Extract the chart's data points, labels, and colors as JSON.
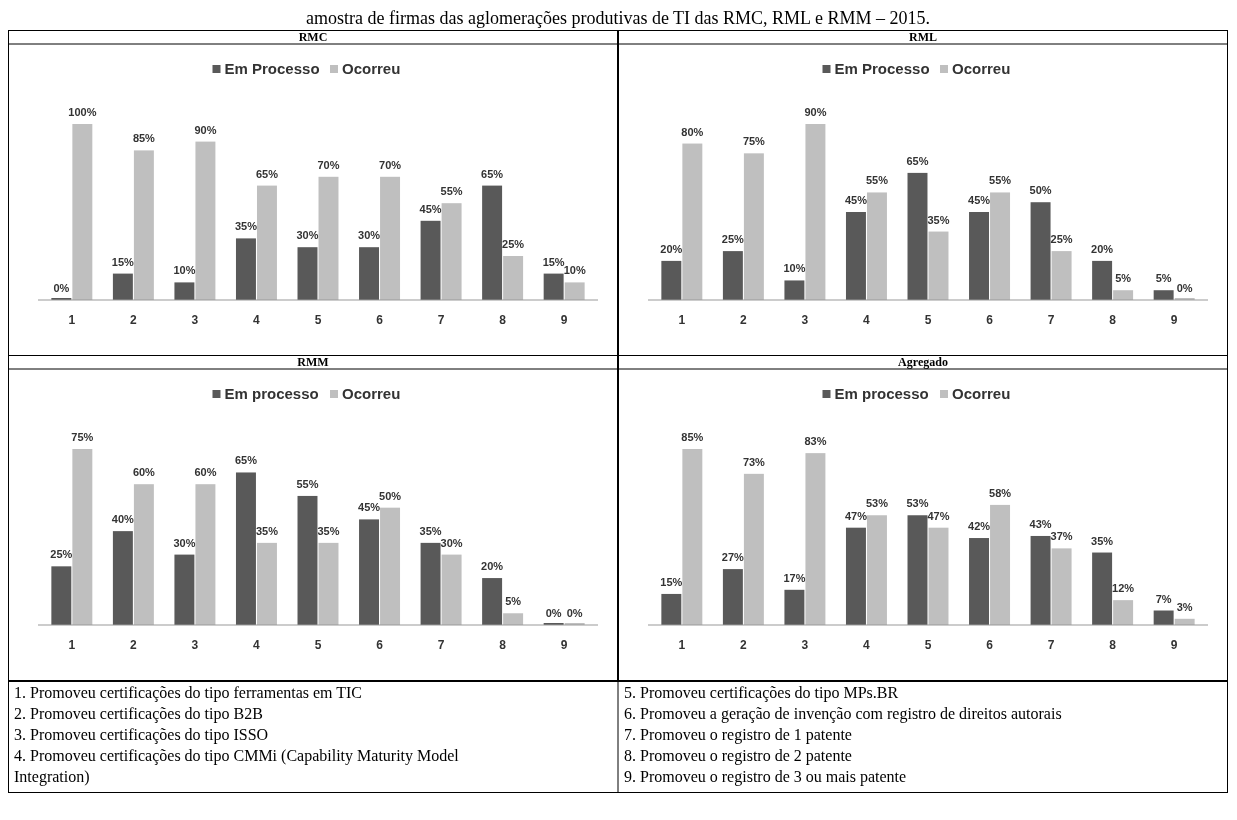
{
  "chart_data": [
    {
      "type": "bar",
      "title": "RMC",
      "categories": [
        "1",
        "2",
        "3",
        "4",
        "5",
        "6",
        "7",
        "8",
        "9"
      ],
      "legend": "top",
      "series": [
        {
          "name": "Em Processo",
          "color": "#595959",
          "values": [
            0,
            15,
            10,
            35,
            30,
            30,
            45,
            65,
            15
          ],
          "value_labels": [
            "0%",
            "15%",
            "10%",
            "35%",
            "30%",
            "30%",
            "45%",
            "65%",
            "15%"
          ]
        },
        {
          "name": "Ocorreu",
          "color": "#bfbfbf",
          "values": [
            100,
            85,
            90,
            65,
            70,
            70,
            55,
            25,
            10
          ],
          "value_labels": [
            "100%",
            "85%",
            "90%",
            "65%",
            "70%",
            "70%",
            "55%",
            "25%",
            "10%"
          ]
        }
      ]
    },
    {
      "type": "bar",
      "title": "RML",
      "categories": [
        "1",
        "2",
        "3",
        "4",
        "5",
        "6",
        "7",
        "8",
        "9"
      ],
      "legend": "top",
      "series": [
        {
          "name": "Em Processo",
          "color": "#595959",
          "values": [
            20,
            25,
            10,
            45,
            65,
            45,
            50,
            20,
            5
          ],
          "value_labels": [
            "20%",
            "25%",
            "10%",
            "45%",
            "65%",
            "45%",
            "50%",
            "20%",
            "5%"
          ]
        },
        {
          "name": "Ocorreu",
          "color": "#bfbfbf",
          "values": [
            80,
            75,
            90,
            55,
            35,
            55,
            25,
            5,
            0
          ],
          "value_labels": [
            "80%",
            "75%",
            "90%",
            "55%",
            "35%",
            "55%",
            "25%",
            "5%",
            "0%"
          ]
        }
      ]
    },
    {
      "type": "bar",
      "title": "RMM",
      "categories": [
        "1",
        "2",
        "3",
        "4",
        "5",
        "6",
        "7",
        "8",
        "9"
      ],
      "legend": "top",
      "series": [
        {
          "name": "Em processo",
          "color": "#595959",
          "values": [
            25,
            40,
            30,
            65,
            55,
            45,
            35,
            20,
            0
          ],
          "value_labels": [
            "25%",
            "40%",
            "30%",
            "65%",
            "55%",
            "45%",
            "35%",
            "20%",
            "0%"
          ]
        },
        {
          "name": "Ocorreu",
          "color": "#bfbfbf",
          "values": [
            75,
            60,
            60,
            35,
            35,
            50,
            30,
            5,
            0
          ],
          "value_labels": [
            "75%",
            "60%",
            "60%",
            "35%",
            "35%",
            "50%",
            "30%",
            "5%",
            "0%"
          ]
        }
      ]
    },
    {
      "type": "bar",
      "title": "Agregado",
      "categories": [
        "1",
        "2",
        "3",
        "4",
        "5",
        "6",
        "7",
        "8",
        "9"
      ],
      "legend": "top",
      "series": [
        {
          "name": "Em processo",
          "color": "#595959",
          "values": [
            15,
            27,
            17,
            47,
            53,
            42,
            43,
            35,
            7
          ],
          "value_labels": [
            "15%",
            "27%",
            "17%",
            "47%",
            "53%",
            "42%",
            "43%",
            "35%",
            "7%"
          ]
        },
        {
          "name": "Ocorreu",
          "color": "#bfbfbf",
          "values": [
            85,
            73,
            83,
            53,
            47,
            58,
            37,
            12,
            3
          ],
          "value_labels": [
            "85%",
            "73%",
            "83%",
            "53%",
            "47%",
            "58%",
            "37%",
            "12%",
            "3%"
          ]
        }
      ]
    },
    {
      "type": "other",
      "title": "amostra de firmas das aglomerações produtivas de TI das RMC, RML e RMM – 2015.",
      "annotations": [
        "1. Promoveu certificações do tipo ferramentas em TIC",
        "2. Promoveu certificações do tipo B2B",
        "3. Promoveu certificações do tipo ISSO",
        "4. Promoveu certificações do tipo CMMi (Capability Maturity Model Integration)",
        "5. Promoveu certificações do tipo MPs.BR",
        "6. Promoveu a geração de invenção com registro de direitos autorais",
        "7. Promoveu o registro de 1 patente",
        "8. Promoveu o registro de 2 patente",
        "9. Promoveu o registro de 3 ou mais patente"
      ]
    }
  ]
}
